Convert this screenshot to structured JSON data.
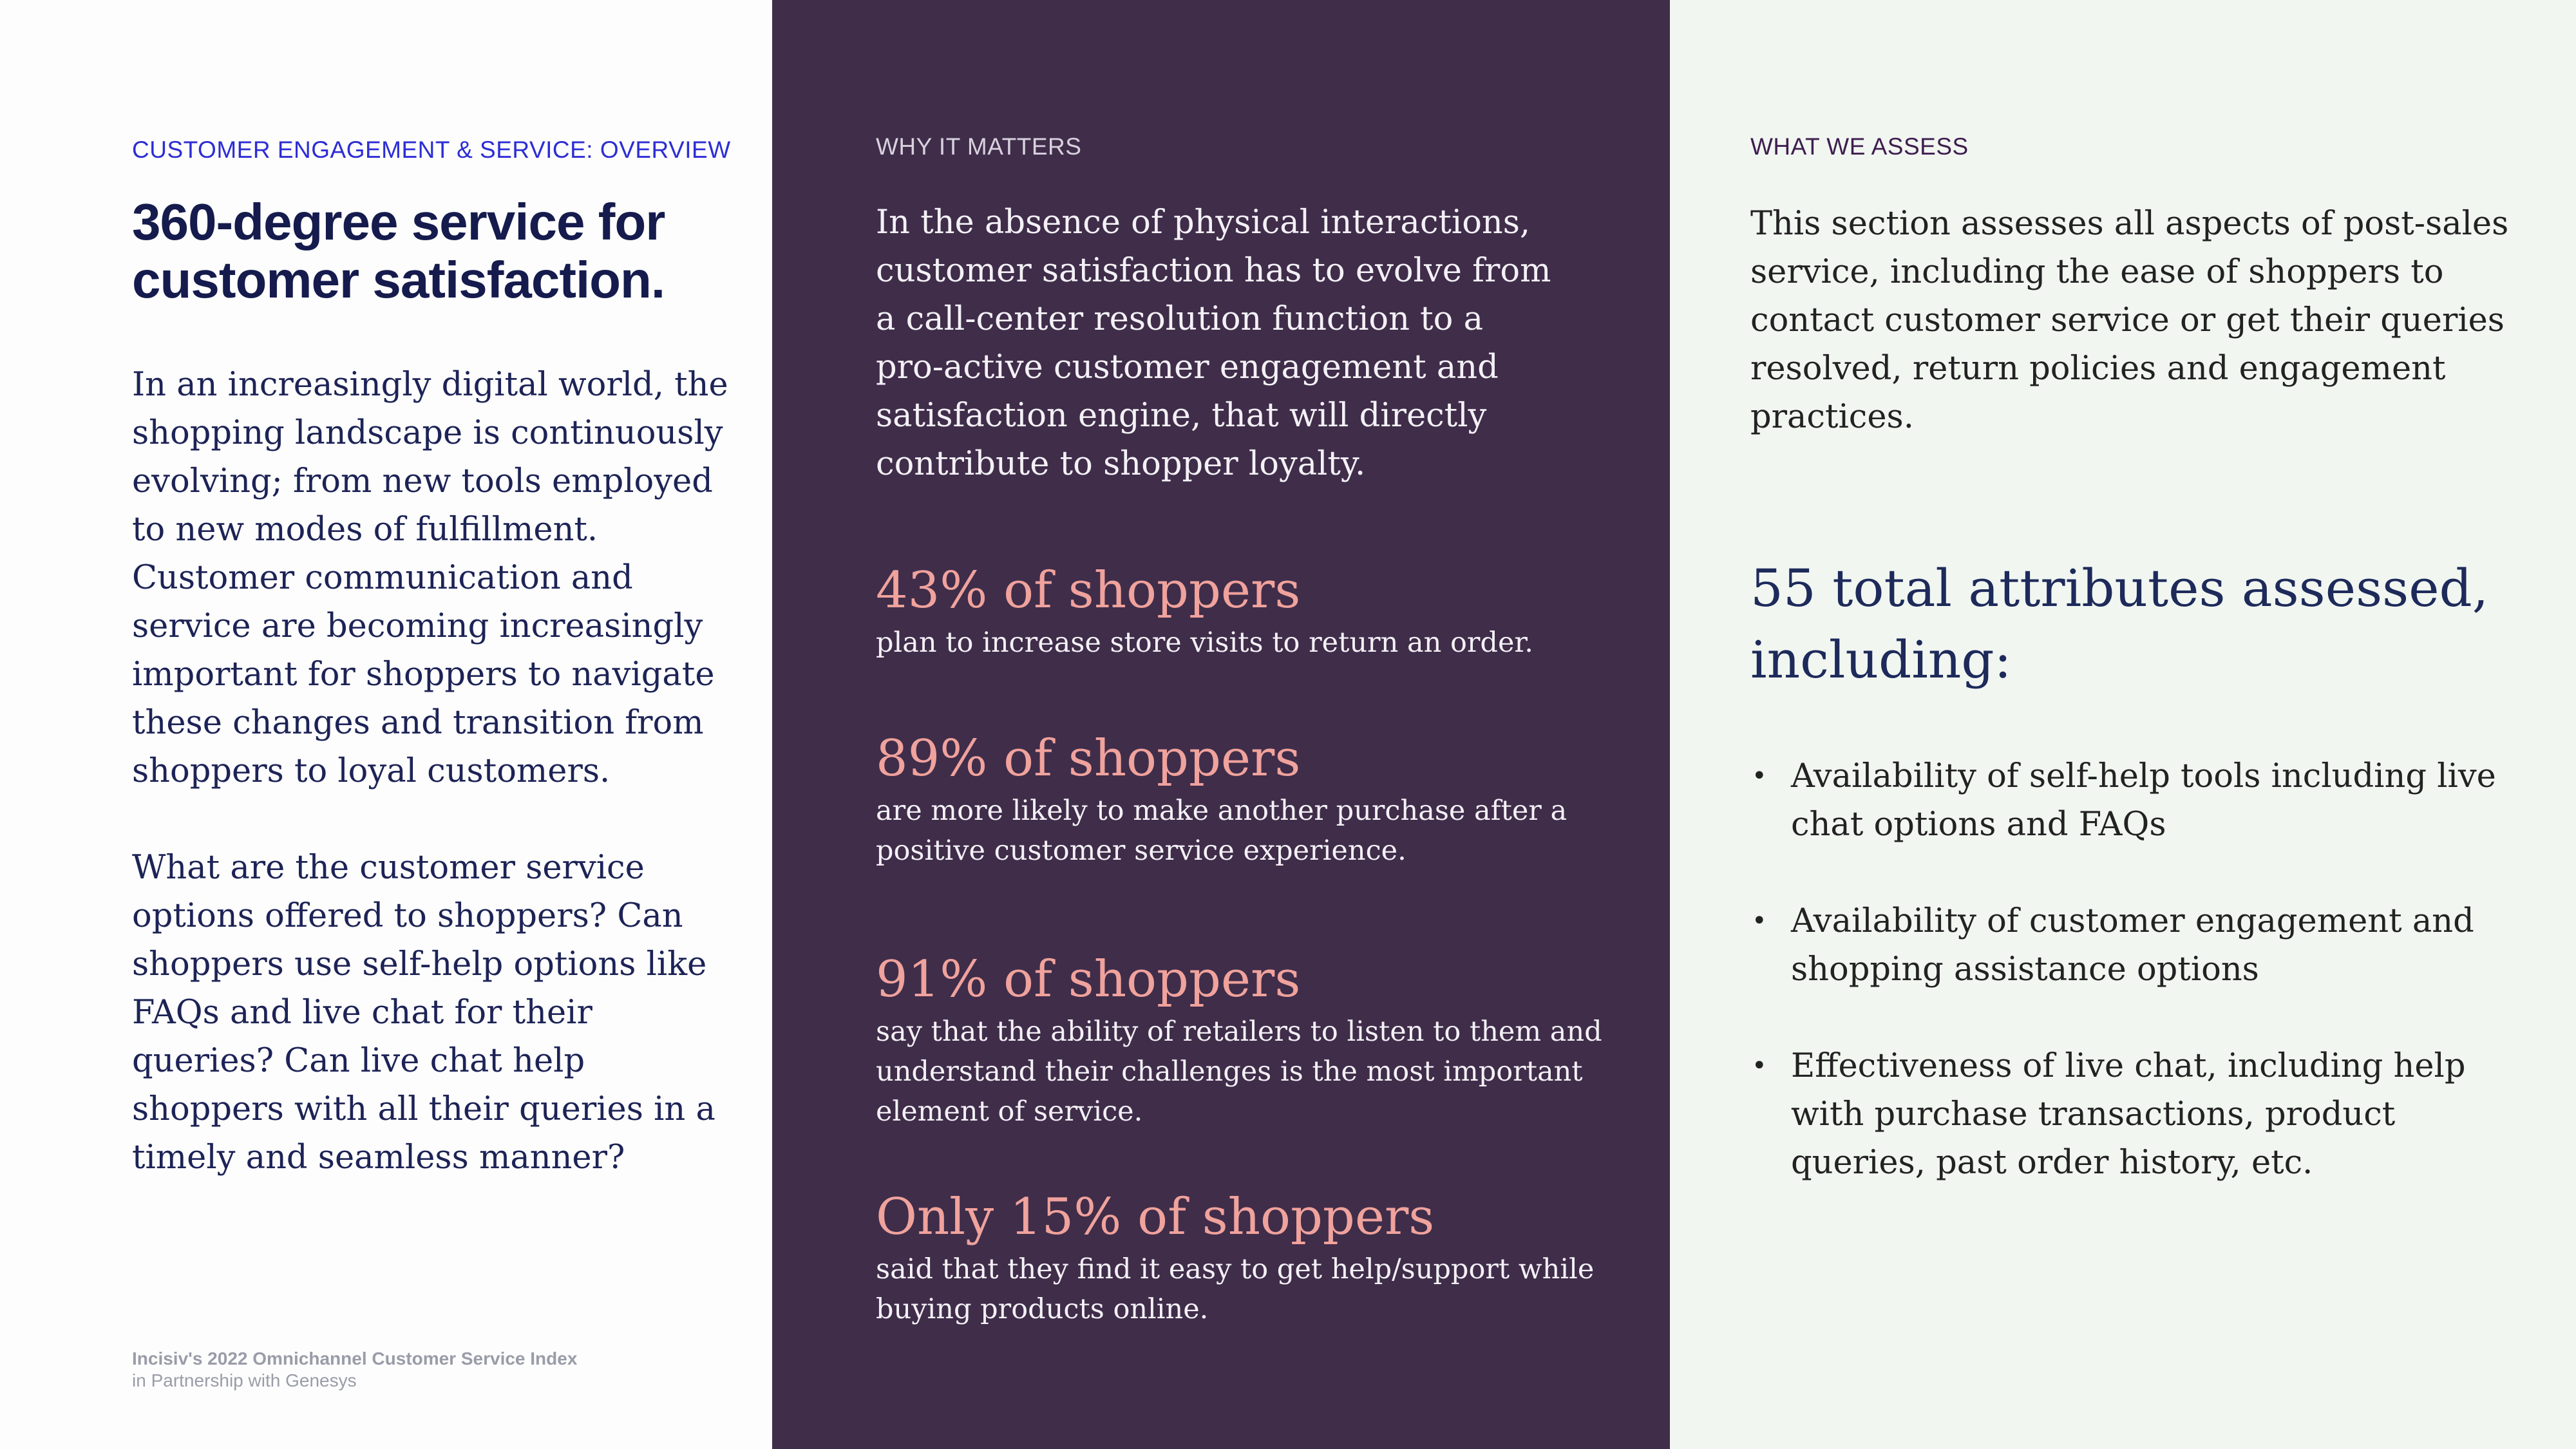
{
  "left": {
    "eyebrow": "CUSTOMER ENGAGEMENT & SERVICE: OVERVIEW",
    "title_lines": [
      "360-degree service for",
      "customer satisfaction."
    ],
    "para1_lines": [
      "In an increasingly digital world, the",
      "shopping landscape is continuously",
      "evolving; from new tools employed",
      "to new modes of fulfillment.",
      "Customer communication and",
      "service are becoming increasingly",
      "important for shoppers to navigate",
      "these changes and transition from",
      "shoppers to loyal customers."
    ],
    "para2_lines": [
      "What are the customer service",
      "options offered to shoppers? Can",
      "shoppers use self-help options like",
      "FAQs and live chat for their",
      "queries? Can live chat help",
      "shoppers with all their queries in a",
      "timely and seamless manner?"
    ],
    "footer_line1": "Incisiv's 2022 Omnichannel Customer Service  Index",
    "footer_line2": "in Partnership with Genesys"
  },
  "middle": {
    "eyebrow": "WHY IT MATTERS",
    "intro_lines": [
      "In the absence of physical interactions,",
      "customer satisfaction has to evolve from",
      "a call-center resolution function to a",
      "pro-active customer engagement and",
      "satisfaction engine, that will directly",
      "contribute to shopper loyalty."
    ],
    "stats": [
      {
        "headline": "43% of shoppers",
        "desc_lines": [
          "plan to increase store visits to return an order."
        ]
      },
      {
        "headline": "89% of shoppers",
        "desc_lines": [
          "are more likely to make another purchase after a",
          "positive customer service experience."
        ]
      },
      {
        "headline": "91% of shoppers",
        "desc_lines": [
          "say that the ability of retailers to listen to them and",
          "understand their challenges is the most important",
          "element of service."
        ]
      },
      {
        "headline": "Only 15% of shoppers",
        "desc_lines": [
          "said that they find it easy to get help/support while",
          "buying products online."
        ]
      }
    ]
  },
  "right": {
    "eyebrow": "WHAT WE ASSESS",
    "intro_lines": [
      "This section assesses all aspects of post-sales",
      "service, including the ease of shoppers to",
      "contact customer service or get their queries",
      "resolved, return policies and engagement",
      "practices."
    ],
    "big_lines": [
      "55 total attributes assessed,",
      "including:"
    ],
    "bullet_glyph": "•",
    "bullets": [
      {
        "lines": [
          "Availability of self-help tools including live",
          "chat options and FAQs"
        ]
      },
      {
        "lines": [
          "Availability of customer engagement and",
          "shopping assistance options"
        ]
      },
      {
        "lines": [
          "Effectiveness of live chat, including help",
          "with purchase transactions, product",
          "queries, past order history, etc."
        ]
      }
    ]
  },
  "colors": {
    "left_bg": "#fcfdfc",
    "middle_bg": "#3f2d4a",
    "right_bg": "#f1f6f1",
    "accent_blue": "#2c2dd4",
    "stat_pink": "#f0a29c",
    "navy": "#151b4d"
  }
}
